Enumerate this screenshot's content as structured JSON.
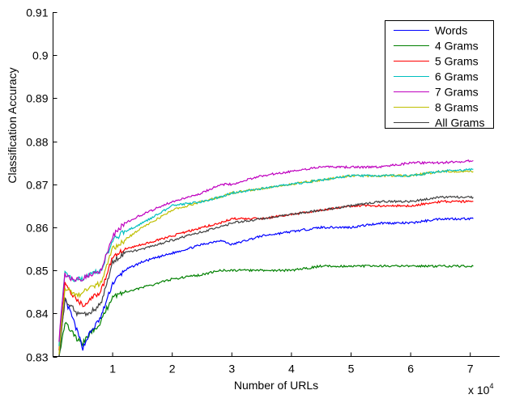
{
  "chart_data": {
    "type": "line",
    "title": "",
    "xlabel": "Number of URLs",
    "ylabel": "Classification Accuracy",
    "x_multiplier_label": "x 10",
    "x_multiplier_exp": "4",
    "xlim": [
      0,
      7.5
    ],
    "ylim": [
      0.83,
      0.91
    ],
    "xticks": [
      1,
      2,
      3,
      4,
      5,
      6,
      7
    ],
    "xtick_labels": [
      "1",
      "2",
      "3",
      "4",
      "5",
      "6",
      "7"
    ],
    "yticks": [
      0.83,
      0.84,
      0.85,
      0.86,
      0.87,
      0.88,
      0.89,
      0.9,
      0.91
    ],
    "ytick_labels": [
      "0.83",
      "0.84",
      "0.85",
      "0.86",
      "0.87",
      "0.88",
      "0.89",
      "0.9",
      "0.91"
    ],
    "grid": false,
    "legend_position": "top-right",
    "x": [
      0.1,
      0.2,
      0.3,
      0.4,
      0.5,
      0.6,
      0.8,
      1.0,
      1.2,
      1.5,
      2.0,
      2.5,
      2.8,
      3.0,
      3.5,
      4.0,
      4.5,
      5.0,
      5.5,
      6.0,
      6.5,
      7.05
    ],
    "series": [
      {
        "name": "Words",
        "color": "#0000ff",
        "values": [
          0.83,
          0.843,
          0.84,
          0.836,
          0.832,
          0.835,
          0.839,
          0.847,
          0.85,
          0.852,
          0.854,
          0.856,
          0.857,
          0.856,
          0.858,
          0.859,
          0.86,
          0.86,
          0.861,
          0.861,
          0.862,
          0.862
        ]
      },
      {
        "name": "4 Grams",
        "color": "#008000",
        "values": [
          0.83,
          0.838,
          0.836,
          0.834,
          0.833,
          0.835,
          0.838,
          0.844,
          0.845,
          0.846,
          0.848,
          0.849,
          0.85,
          0.85,
          0.85,
          0.85,
          0.851,
          0.851,
          0.851,
          0.851,
          0.851,
          0.851
        ]
      },
      {
        "name": "5 Grams",
        "color": "#ff0000",
        "values": [
          0.832,
          0.847,
          0.845,
          0.843,
          0.842,
          0.843,
          0.845,
          0.853,
          0.855,
          0.856,
          0.858,
          0.86,
          0.861,
          0.862,
          0.862,
          0.863,
          0.864,
          0.865,
          0.865,
          0.865,
          0.866,
          0.866
        ]
      },
      {
        "name": "6 Grams",
        "color": "#00bfbf",
        "values": [
          0.833,
          0.85,
          0.848,
          0.848,
          0.848,
          0.849,
          0.85,
          0.857,
          0.859,
          0.861,
          0.865,
          0.866,
          0.867,
          0.868,
          0.869,
          0.87,
          0.871,
          0.872,
          0.872,
          0.872,
          0.873,
          0.8735
        ]
      },
      {
        "name": "7 Grams",
        "color": "#bf00bf",
        "values": [
          0.834,
          0.849,
          0.848,
          0.848,
          0.848,
          0.849,
          0.85,
          0.858,
          0.861,
          0.863,
          0.866,
          0.868,
          0.87,
          0.87,
          0.872,
          0.873,
          0.874,
          0.874,
          0.874,
          0.875,
          0.875,
          0.8755
        ]
      },
      {
        "name": "8 Grams",
        "color": "#bfbf00",
        "values": [
          0.831,
          0.846,
          0.845,
          0.844,
          0.845,
          0.846,
          0.847,
          0.855,
          0.857,
          0.86,
          0.864,
          0.866,
          0.867,
          0.868,
          0.869,
          0.87,
          0.871,
          0.872,
          0.872,
          0.872,
          0.873,
          0.873
        ]
      },
      {
        "name": "All Grams",
        "color": "#404040",
        "values": [
          0.83,
          0.843,
          0.842,
          0.84,
          0.84,
          0.84,
          0.842,
          0.852,
          0.854,
          0.855,
          0.857,
          0.859,
          0.86,
          0.861,
          0.862,
          0.863,
          0.864,
          0.865,
          0.866,
          0.866,
          0.867,
          0.867
        ]
      }
    ]
  }
}
